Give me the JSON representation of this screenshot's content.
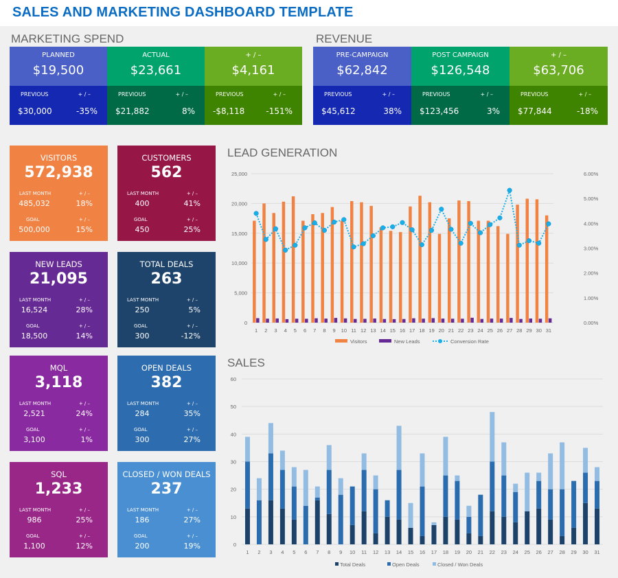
{
  "title": "SALES AND MARKETING DASHBOARD TEMPLATE",
  "marketing": {
    "heading": "MARKETING SPEND",
    "cols": [
      {
        "label": "PLANNED",
        "value": "$19,500",
        "prev_label": "PREVIOUS",
        "prev": "$30,000",
        "pm_label": "+ / –",
        "pm": "-35%",
        "top": "#4a60c6",
        "bottom": "#1428b2"
      },
      {
        "label": "ACTUAL",
        "value": "$23,661",
        "prev_label": "PREVIOUS",
        "prev": "$21,882",
        "pm_label": "+ / –",
        "pm": "8%",
        "top": "#00a36c",
        "bottom": "#006a47"
      },
      {
        "label": "+ / –",
        "value": "$4,161",
        "prev_label": "PREVIOUS",
        "prev": "-$8,118",
        "pm_label": "+ / –",
        "pm": "-151%",
        "top": "#6aac22",
        "bottom": "#3f8400"
      }
    ]
  },
  "revenue": {
    "heading": "REVENUE",
    "cols": [
      {
        "label": "PRE-CAMPAIGN",
        "value": "$62,842",
        "prev_label": "PREVIOUS",
        "prev": "$45,612",
        "pm_label": "+ / –",
        "pm": "38%",
        "top": "#4a60c6",
        "bottom": "#1428b2"
      },
      {
        "label": "POST CAMPAIGN",
        "value": "$126,548",
        "prev_label": "PREVIOUS",
        "prev": "$123,456",
        "pm_label": "+ / –",
        "pm": "3%",
        "top": "#00a36c",
        "bottom": "#006a47"
      },
      {
        "label": "+ / –",
        "value": "$63,706",
        "prev_label": "PREVIOUS",
        "prev": "$77,844",
        "pm_label": "+ / –",
        "pm": "-18%",
        "top": "#6aac22",
        "bottom": "#3f8400"
      }
    ]
  },
  "tiles": [
    {
      "label": "VISITORS",
      "value": "572,938",
      "lm_label": "LAST MONTH",
      "lm": "485,032",
      "pm_label": "+ / –",
      "lm_pm": "18%",
      "goal_label": "GOAL",
      "goal": "500,000",
      "goal_pm": "15%",
      "color": "#f08344"
    },
    {
      "label": "CUSTOMERS",
      "value": "562",
      "lm_label": "LAST MONTH",
      "lm": "400",
      "pm_label": "+ / –",
      "lm_pm": "41%",
      "goal_label": "GOAL",
      "goal": "450",
      "goal_pm": "25%",
      "color": "#961746"
    },
    {
      "label": "NEW LEADS",
      "value": "21,095",
      "lm_label": "LAST MONTH",
      "lm": "16,524",
      "pm_label": "+ / –",
      "lm_pm": "28%",
      "goal_label": "GOAL",
      "goal": "18,500",
      "goal_pm": "14%",
      "color": "#662a94"
    },
    {
      "label": "TOTAL DEALS",
      "value": "263",
      "lm_label": "LAST MONTH",
      "lm": "250",
      "pm_label": "+ / –",
      "lm_pm": "5%",
      "goal_label": "GOAL",
      "goal": "300",
      "goal_pm": "-12%",
      "color": "#1f446c"
    },
    {
      "label": "MQL",
      "value": "3,118",
      "lm_label": "LAST MONTH",
      "lm": "2,521",
      "pm_label": "+ / –",
      "lm_pm": "24%",
      "goal_label": "GOAL",
      "goal": "3,100",
      "goal_pm": "1%",
      "color": "#8a2aa0"
    },
    {
      "label": "OPEN DEALS",
      "value": "382",
      "lm_label": "LAST MONTH",
      "lm": "284",
      "pm_label": "+ / –",
      "lm_pm": "35%",
      "goal_label": "GOAL",
      "goal": "300",
      "goal_pm": "27%",
      "color": "#2d6cae"
    },
    {
      "label": "SQL",
      "value": "1,233",
      "lm_label": "LAST MONTH",
      "lm": "986",
      "pm_label": "+ / –",
      "lm_pm": "25%",
      "goal_label": "GOAL",
      "goal": "1,100",
      "goal_pm": "12%",
      "color": "#992788"
    },
    {
      "label": "CLOSED / WON DEALS",
      "value": "237",
      "lm_label": "LAST MONTH",
      "lm": "186",
      "pm_label": "+ / –",
      "lm_pm": "27%",
      "goal_label": "GOAL",
      "goal": "200",
      "goal_pm": "19%",
      "color": "#4a8fd2"
    }
  ],
  "chart_data": [
    {
      "type": "bar+line",
      "title": "LEAD GENERATION",
      "x": [
        1,
        2,
        3,
        4,
        5,
        6,
        7,
        8,
        9,
        10,
        11,
        12,
        13,
        14,
        15,
        16,
        17,
        18,
        19,
        20,
        21,
        22,
        23,
        24,
        25,
        26,
        27,
        28,
        29,
        30,
        31
      ],
      "ylim": [
        0,
        25000
      ],
      "yticks": [
        "0",
        "5,000",
        "10,000",
        "15,000",
        "20,000",
        "25,000"
      ],
      "y2lim": [
        0,
        6
      ],
      "y2ticks": [
        "0.00%",
        "1.00%",
        "2.00%",
        "3.00%",
        "4.00%",
        "5.00%",
        "6.00%"
      ],
      "grid": true,
      "legend": "bottom",
      "series": [
        {
          "name": "Visitors",
          "kind": "bar",
          "color": "#f08344",
          "values": [
            17100,
            20000,
            18400,
            20300,
            21200,
            17100,
            18200,
            18400,
            19400,
            17100,
            20400,
            20200,
            19600,
            16000,
            15400,
            15200,
            19500,
            21300,
            20200,
            14900,
            17500,
            20500,
            20400,
            17100,
            17100,
            16200,
            14900,
            19800,
            20800,
            20700,
            18000
          ]
        },
        {
          "name": "New Leads",
          "kind": "bar",
          "color": "#662a94",
          "values": [
            750,
            670,
            700,
            590,
            660,
            650,
            730,
            680,
            790,
            710,
            620,
            640,
            690,
            610,
            590,
            610,
            730,
            670,
            750,
            680,
            660,
            660,
            820,
            620,
            680,
            680,
            790,
            620,
            690,
            660,
            720
          ]
        },
        {
          "name": "Conversion Rate",
          "kind": "line",
          "axis": "right",
          "unit": "%",
          "color": "#1aaee8",
          "values": [
            4.4,
            3.35,
            3.78,
            2.92,
            3.12,
            3.82,
            4.02,
            3.72,
            4.05,
            4.15,
            3.05,
            3.18,
            3.5,
            3.82,
            3.86,
            4.03,
            3.74,
            3.14,
            3.72,
            4.57,
            3.76,
            3.2,
            4.0,
            3.62,
            3.95,
            4.22,
            5.33,
            3.12,
            3.3,
            3.2,
            3.98
          ]
        }
      ]
    },
    {
      "type": "stacked-bar",
      "title": "SALES",
      "x": [
        1,
        2,
        3,
        4,
        5,
        6,
        7,
        8,
        9,
        10,
        11,
        12,
        13,
        14,
        15,
        16,
        17,
        18,
        19,
        20,
        21,
        22,
        23,
        24,
        25,
        26,
        27,
        28,
        29,
        30,
        31
      ],
      "ylim": [
        0,
        60
      ],
      "yticks": [
        "0",
        "10",
        "20",
        "30",
        "40",
        "50",
        "60"
      ],
      "grid": true,
      "legend": "bottom",
      "series": [
        {
          "name": "Total Deals",
          "color": "#1d426a",
          "values": [
            13,
            0,
            16,
            13,
            9,
            0,
            16,
            11,
            0,
            7,
            12,
            4,
            10,
            9,
            6,
            3,
            7,
            10,
            9,
            4,
            3,
            12,
            10,
            8,
            12,
            13,
            9,
            3,
            6,
            15,
            13
          ]
        },
        {
          "name": "Open Deals",
          "color": "#2b6cae",
          "values": [
            17,
            16,
            17,
            14,
            12,
            14,
            1,
            16,
            18,
            14,
            15,
            16,
            6,
            18,
            0,
            18,
            0,
            15,
            14,
            6,
            15,
            18,
            15,
            11,
            0,
            10,
            11,
            17,
            17,
            11,
            10
          ]
        },
        {
          "name": "Closed / Won Deals",
          "color": "#93bce3",
          "values": [
            9,
            8,
            11,
            7,
            7,
            13,
            4,
            9,
            6,
            0,
            6,
            5,
            0,
            16,
            9,
            12,
            1,
            14,
            2,
            4,
            0,
            18,
            12,
            3,
            14,
            3,
            13,
            17,
            0,
            9,
            5
          ]
        }
      ]
    }
  ]
}
